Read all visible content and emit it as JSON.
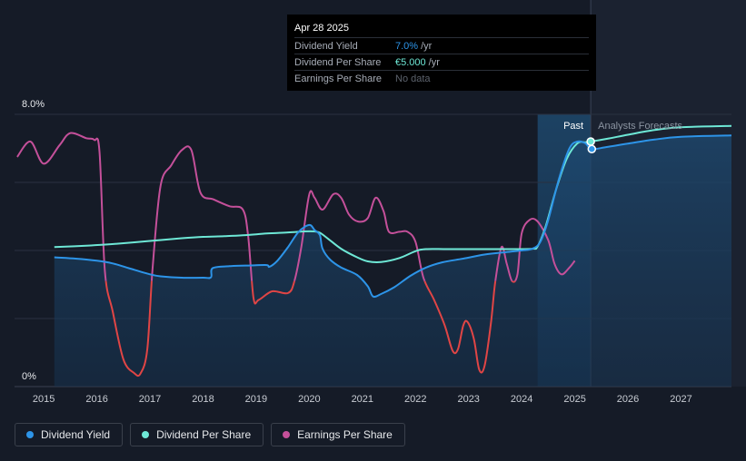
{
  "chart_data": {
    "type": "line",
    "x_ticks": [
      "2015",
      "2016",
      "2017",
      "2018",
      "2019",
      "2020",
      "2021",
      "2022",
      "2023",
      "2024",
      "2025",
      "2026",
      "2027"
    ],
    "y_ticks": [
      "8.0%",
      "0%"
    ],
    "ylim": [
      0,
      8
    ],
    "xlim": [
      2014.45,
      2027.95
    ],
    "zones": {
      "past_label": "Past",
      "forecast_label": "Analysts Forecasts",
      "forecast_start": 2025.3,
      "highlight_start": 2024.3
    },
    "series": [
      {
        "name": "Dividend Yield",
        "color": "#2d94e8",
        "points": [
          [
            2015.2,
            3.8
          ],
          [
            2015.6,
            3.76
          ],
          [
            2016.0,
            3.7
          ],
          [
            2016.3,
            3.62
          ],
          [
            2016.6,
            3.48
          ],
          [
            2017.0,
            3.3
          ],
          [
            2017.2,
            3.24
          ],
          [
            2017.6,
            3.2
          ],
          [
            2018.0,
            3.2
          ],
          [
            2018.15,
            3.21
          ],
          [
            2018.18,
            3.48
          ],
          [
            2018.5,
            3.54
          ],
          [
            2018.9,
            3.56
          ],
          [
            2019.2,
            3.57
          ],
          [
            2019.25,
            3.52
          ],
          [
            2019.4,
            3.7
          ],
          [
            2019.6,
            4.1
          ],
          [
            2019.8,
            4.55
          ],
          [
            2020.0,
            4.75
          ],
          [
            2020.1,
            4.6
          ],
          [
            2020.2,
            4.45
          ],
          [
            2020.25,
            4.05
          ],
          [
            2020.4,
            3.72
          ],
          [
            2020.6,
            3.5
          ],
          [
            2020.9,
            3.28
          ],
          [
            2021.1,
            2.95
          ],
          [
            2021.2,
            2.65
          ],
          [
            2021.35,
            2.72
          ],
          [
            2021.6,
            2.92
          ],
          [
            2021.9,
            3.25
          ],
          [
            2022.2,
            3.5
          ],
          [
            2022.5,
            3.65
          ],
          [
            2022.9,
            3.76
          ],
          [
            2023.3,
            3.88
          ],
          [
            2023.7,
            3.95
          ],
          [
            2024.0,
            4.0
          ],
          [
            2024.2,
            4.05
          ],
          [
            2024.35,
            4.25
          ],
          [
            2024.5,
            4.9
          ],
          [
            2024.7,
            6.1
          ],
          [
            2024.9,
            7.0
          ],
          [
            2025.05,
            7.2
          ],
          [
            2025.2,
            7.15
          ],
          [
            2025.32,
            6.98
          ],
          [
            2025.6,
            7.04
          ],
          [
            2026.0,
            7.14
          ],
          [
            2026.5,
            7.26
          ],
          [
            2027.0,
            7.34
          ],
          [
            2027.95,
            7.38
          ]
        ]
      },
      {
        "name": "Dividend Per Share",
        "color": "#6ee8d6",
        "points": [
          [
            2015.2,
            4.1
          ],
          [
            2015.8,
            4.14
          ],
          [
            2016.4,
            4.2
          ],
          [
            2017.0,
            4.28
          ],
          [
            2017.6,
            4.36
          ],
          [
            2018.0,
            4.4
          ],
          [
            2018.4,
            4.42
          ],
          [
            2018.8,
            4.45
          ],
          [
            2019.2,
            4.5
          ],
          [
            2019.6,
            4.53
          ],
          [
            2019.9,
            4.56
          ],
          [
            2020.1,
            4.56
          ],
          [
            2020.2,
            4.52
          ],
          [
            2020.35,
            4.35
          ],
          [
            2020.6,
            4.05
          ],
          [
            2020.9,
            3.8
          ],
          [
            2021.1,
            3.68
          ],
          [
            2021.35,
            3.66
          ],
          [
            2021.7,
            3.78
          ],
          [
            2022.0,
            3.98
          ],
          [
            2022.2,
            4.04
          ],
          [
            2022.6,
            4.04
          ],
          [
            2023.2,
            4.04
          ],
          [
            2023.8,
            4.04
          ],
          [
            2024.2,
            4.05
          ],
          [
            2024.3,
            4.12
          ],
          [
            2024.45,
            4.7
          ],
          [
            2024.65,
            5.8
          ],
          [
            2024.85,
            6.7
          ],
          [
            2025.05,
            7.15
          ],
          [
            2025.2,
            7.18
          ],
          [
            2025.3,
            7.2
          ],
          [
            2025.6,
            7.28
          ],
          [
            2026.0,
            7.4
          ],
          [
            2026.5,
            7.54
          ],
          [
            2027.0,
            7.62
          ],
          [
            2027.95,
            7.66
          ]
        ]
      },
      {
        "name": "Earnings Per Share",
        "color_high": "#c4509a",
        "color_low": "#e04545",
        "threshold": 3.1,
        "points": [
          [
            2014.5,
            6.75
          ],
          [
            2014.75,
            7.2
          ],
          [
            2015.0,
            6.55
          ],
          [
            2015.3,
            7.1
          ],
          [
            2015.5,
            7.45
          ],
          [
            2015.8,
            7.3
          ],
          [
            2015.95,
            7.25
          ],
          [
            2016.05,
            6.9
          ],
          [
            2016.15,
            3.4
          ],
          [
            2016.3,
            2.2
          ],
          [
            2016.5,
            0.8
          ],
          [
            2016.7,
            0.4
          ],
          [
            2016.82,
            0.38
          ],
          [
            2016.95,
            1.1
          ],
          [
            2017.05,
            3.5
          ],
          [
            2017.2,
            5.9
          ],
          [
            2017.4,
            6.5
          ],
          [
            2017.6,
            6.95
          ],
          [
            2017.78,
            6.95
          ],
          [
            2017.95,
            5.7
          ],
          [
            2018.2,
            5.5
          ],
          [
            2018.5,
            5.3
          ],
          [
            2018.75,
            5.2
          ],
          [
            2018.85,
            4.4
          ],
          [
            2018.95,
            2.6
          ],
          [
            2019.05,
            2.55
          ],
          [
            2019.3,
            2.8
          ],
          [
            2019.6,
            2.75
          ],
          [
            2019.72,
            3.1
          ],
          [
            2019.85,
            4.1
          ],
          [
            2020.0,
            5.65
          ],
          [
            2020.1,
            5.55
          ],
          [
            2020.25,
            5.2
          ],
          [
            2020.45,
            5.65
          ],
          [
            2020.6,
            5.55
          ],
          [
            2020.75,
            5.05
          ],
          [
            2020.92,
            4.85
          ],
          [
            2021.1,
            4.95
          ],
          [
            2021.25,
            5.55
          ],
          [
            2021.4,
            5.15
          ],
          [
            2021.5,
            4.55
          ],
          [
            2021.7,
            4.55
          ],
          [
            2021.85,
            4.55
          ],
          [
            2022.0,
            4.25
          ],
          [
            2022.15,
            3.2
          ],
          [
            2022.35,
            2.55
          ],
          [
            2022.55,
            1.8
          ],
          [
            2022.7,
            1.05
          ],
          [
            2022.8,
            1.1
          ],
          [
            2022.9,
            1.8
          ],
          [
            2022.98,
            1.9
          ],
          [
            2023.1,
            1.4
          ],
          [
            2023.2,
            0.5
          ],
          [
            2023.3,
            0.6
          ],
          [
            2023.42,
            1.85
          ],
          [
            2023.5,
            3.05
          ],
          [
            2023.62,
            4.1
          ],
          [
            2023.72,
            3.6
          ],
          [
            2023.82,
            3.1
          ],
          [
            2023.92,
            3.3
          ],
          [
            2024.0,
            4.5
          ],
          [
            2024.15,
            4.9
          ],
          [
            2024.3,
            4.85
          ],
          [
            2024.5,
            4.3
          ],
          [
            2024.62,
            3.6
          ],
          [
            2024.75,
            3.3
          ],
          [
            2024.9,
            3.5
          ],
          [
            2025.0,
            3.7
          ]
        ]
      }
    ],
    "markers": [
      {
        "series": "Dividend Per Share",
        "x": 2025.3,
        "y": 7.2
      },
      {
        "series": "Dividend Yield",
        "x": 2025.32,
        "y": 6.98
      }
    ]
  },
  "tooltip": {
    "date": "Apr 28 2025",
    "rows": [
      {
        "name": "Dividend Yield",
        "value": "7.0%",
        "unit": "/yr",
        "color": "#2d94e8"
      },
      {
        "name": "Dividend Per Share",
        "value": "€5.000",
        "unit": "/yr",
        "color": "#6ee8d6"
      },
      {
        "name": "Earnings Per Share",
        "value": "No data",
        "unit": "",
        "color": "#5d636d"
      }
    ]
  },
  "legend": [
    {
      "label": "Dividend Yield",
      "color": "#2d94e8"
    },
    {
      "label": "Dividend Per Share",
      "color": "#6ee8d6"
    },
    {
      "label": "Earnings Per Share",
      "color": "#c4509a"
    }
  ]
}
